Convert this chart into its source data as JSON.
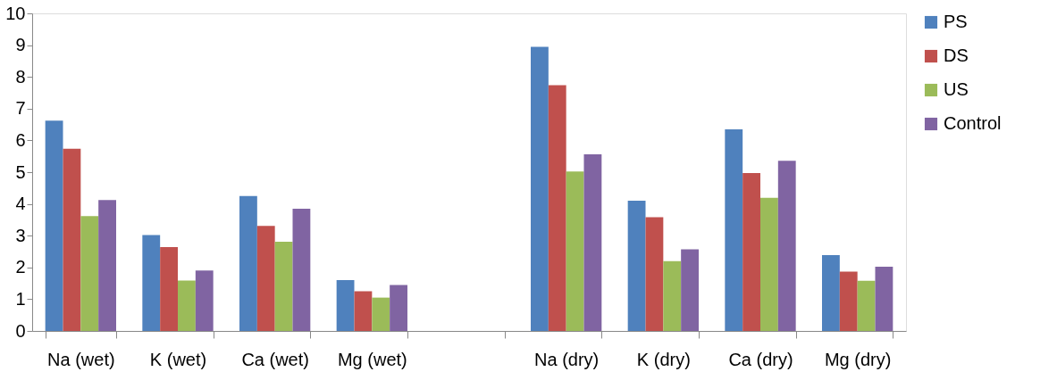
{
  "chart_data": {
    "type": "bar",
    "categories": [
      "Na (wet)",
      "K (wet)",
      "Ca (wet)",
      "Mg (wet)",
      null,
      "Na (dry)",
      "K (dry)",
      "Ca (dry)",
      "Mg (dry)"
    ],
    "series": [
      {
        "name": "PS",
        "color": "#4f81bd",
        "values": [
          6.62,
          3.02,
          4.25,
          1.6,
          null,
          8.95,
          4.1,
          6.35,
          2.39
        ]
      },
      {
        "name": "DS",
        "color": "#c0504d",
        "values": [
          5.74,
          2.64,
          3.31,
          1.25,
          null,
          7.74,
          3.58,
          4.97,
          1.87
        ]
      },
      {
        "name": "US",
        "color": "#9bbb59",
        "values": [
          3.62,
          1.59,
          2.81,
          1.05,
          null,
          5.02,
          2.2,
          4.19,
          1.58
        ]
      },
      {
        "name": "Control",
        "color": "#8064a2",
        "values": [
          4.12,
          1.9,
          3.85,
          1.45,
          null,
          5.56,
          2.57,
          5.36,
          2.02
        ]
      }
    ],
    "ylim": [
      0,
      10
    ],
    "yticks": [
      0,
      1,
      2,
      3,
      4,
      5,
      6,
      7,
      8,
      9,
      10
    ],
    "grid": false,
    "legend": "right"
  }
}
